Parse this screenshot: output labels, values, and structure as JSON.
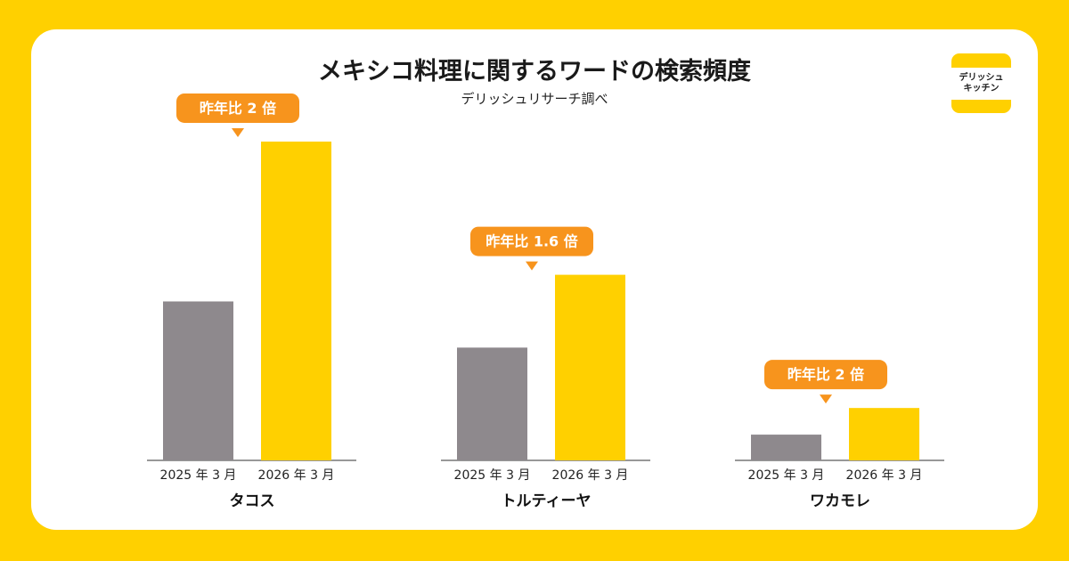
{
  "title": "メキシコ料理に関するワードの検索頻度",
  "subtitle": "デリッシュリサーチ調べ",
  "logo": {
    "line1": "デリッシュ",
    "line2": "キッチン"
  },
  "colors": {
    "background": "#FFD000",
    "bar_2025": "#8E898D",
    "bar_2026": "#FFD000",
    "callout": "#F7941D"
  },
  "chart_data": {
    "type": "bar",
    "title": "メキシコ料理に関するワードの検索頻度",
    "subtitle": "デリッシュリサーチ調べ",
    "xlabel": "",
    "ylabel": "",
    "ylim": [
      0,
      360
    ],
    "grid": false,
    "series_labels": [
      "2025 年 3 月",
      "2026 年 3 月"
    ],
    "groups": [
      {
        "name": "タコス",
        "values": [
          179,
          359
        ],
        "callout": "昨年比 2 倍"
      },
      {
        "name": "トルティーヤ",
        "values": [
          127,
          209
        ],
        "callout": "昨年比 1.6 倍"
      },
      {
        "name": "ワカモレ",
        "values": [
          29,
          59
        ],
        "callout": "昨年比 2 倍"
      }
    ]
  }
}
